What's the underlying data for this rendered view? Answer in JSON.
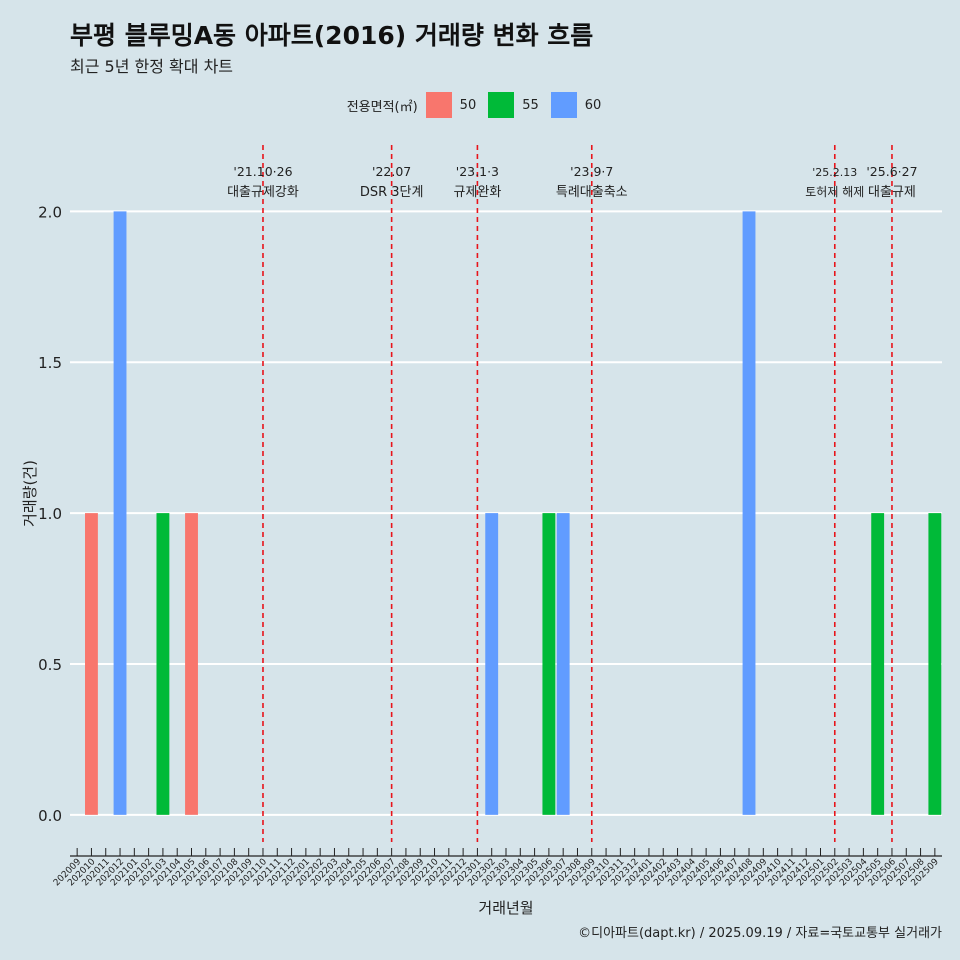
{
  "chart_data": {
    "type": "bar",
    "title": "부평 블루밍A동 아파트(2016) 거래량 변화 흐름",
    "subtitle": "최근 5년 한정 확대 차트",
    "xlabel": "거래년월",
    "ylabel": "거래량(건)",
    "ylim": [
      -0.09,
      2.22
    ],
    "yticks": [
      0.0,
      0.5,
      1.0,
      1.5,
      2.0
    ],
    "ytick_labels": [
      "0.0",
      "0.5",
      "1.0",
      "1.5",
      "2.0"
    ],
    "grid": true,
    "legend_title": "전용면적(㎡)",
    "legend_position": "top",
    "categories": [
      "202009",
      "202010",
      "202011",
      "202012",
      "202101",
      "202102",
      "202103",
      "202104",
      "202105",
      "202106",
      "202107",
      "202108",
      "202109",
      "202110",
      "202111",
      "202112",
      "202201",
      "202202",
      "202203",
      "202204",
      "202205",
      "202206",
      "202207",
      "202208",
      "202209",
      "202210",
      "202211",
      "202212",
      "202301",
      "202302",
      "202303",
      "202304",
      "202305",
      "202306",
      "202307",
      "202308",
      "202309",
      "202310",
      "202311",
      "202312",
      "202401",
      "202402",
      "202403",
      "202404",
      "202405",
      "202406",
      "202407",
      "202408",
      "202409",
      "202410",
      "202411",
      "202412",
      "202501",
      "202502",
      "202503",
      "202504",
      "202505",
      "202506",
      "202507",
      "202508",
      "202509"
    ],
    "series": [
      {
        "name": "50",
        "color": "#f8766d",
        "points": [
          {
            "x": "202010",
            "y": 1
          },
          {
            "x": "202105",
            "y": 1
          }
        ]
      },
      {
        "name": "55",
        "color": "#00ba38",
        "points": [
          {
            "x": "202103",
            "y": 1
          },
          {
            "x": "202306",
            "y": 1
          },
          {
            "x": "202505",
            "y": 1
          },
          {
            "x": "202509",
            "y": 1
          }
        ]
      },
      {
        "name": "60",
        "color": "#619cff",
        "points": [
          {
            "x": "202012",
            "y": 2
          },
          {
            "x": "202302",
            "y": 1
          },
          {
            "x": "202307",
            "y": 1
          },
          {
            "x": "202408",
            "y": 2
          }
        ]
      }
    ],
    "annotations": [
      {
        "x": "202110",
        "date": "'21.10·26",
        "text": "대출규제강화"
      },
      {
        "x": "202207",
        "date": "'22.07",
        "text": "DSR 3단계"
      },
      {
        "x": "202301",
        "date": "'23.1·3",
        "text": "규제완화"
      },
      {
        "x": "202309",
        "date": "'23.9·7",
        "text": "특례대출축소"
      },
      {
        "x": "202502",
        "date": "'25.2.13",
        "text": "토허제 해제"
      },
      {
        "x": "202506",
        "date": "'25.6·27",
        "text": "대출규제"
      }
    ],
    "caption": "©디아파트(dapt.kr) / 2025.09.19 / 자료=국토교통부 실거래가"
  }
}
